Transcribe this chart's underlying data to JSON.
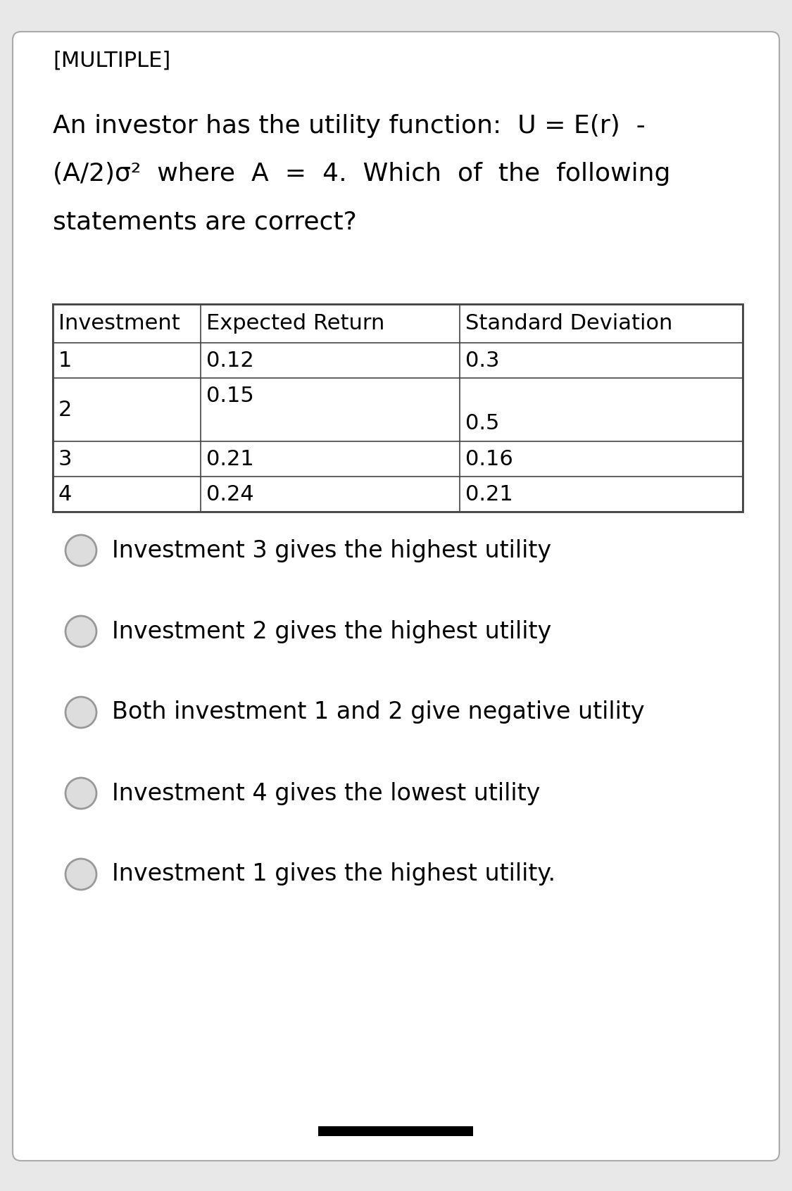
{
  "background_color": "#e8e8e8",
  "card_color": "#ffffff",
  "tag": "[MULTIPLE]",
  "question_line1": "An investor has the utility function:  U = E(r)  -",
  "question_line2": "(A/2)σ²  where  A  =  4.  Which  of  the  following",
  "question_line3": "statements are correct?",
  "table_headers": [
    "Investment",
    "Expected Return",
    "Standard Deviation"
  ],
  "table_data": [
    [
      "1",
      "0.12",
      "0.3"
    ],
    [
      "2",
      "0.15",
      "0.5"
    ],
    [
      "3",
      "0.21",
      "0.16"
    ],
    [
      "4",
      "0.24",
      "0.21"
    ]
  ],
  "options": [
    "Investment 3 gives the highest utility",
    "Investment 2 gives the highest utility",
    "Both investment 1 and 2 give negative utility",
    "Investment 4 gives the lowest utility",
    "Investment 1 gives the highest utility."
  ],
  "font_size_tag": 22,
  "font_size_question": 26,
  "font_size_table_header": 22,
  "font_size_table_data": 22,
  "font_size_options": 24,
  "text_color": "#000000",
  "card_border_color": "#aaaaaa",
  "table_border_color": "#444444",
  "checkbox_border_color": "#999999",
  "checkbox_fill_color": "#dddddd"
}
